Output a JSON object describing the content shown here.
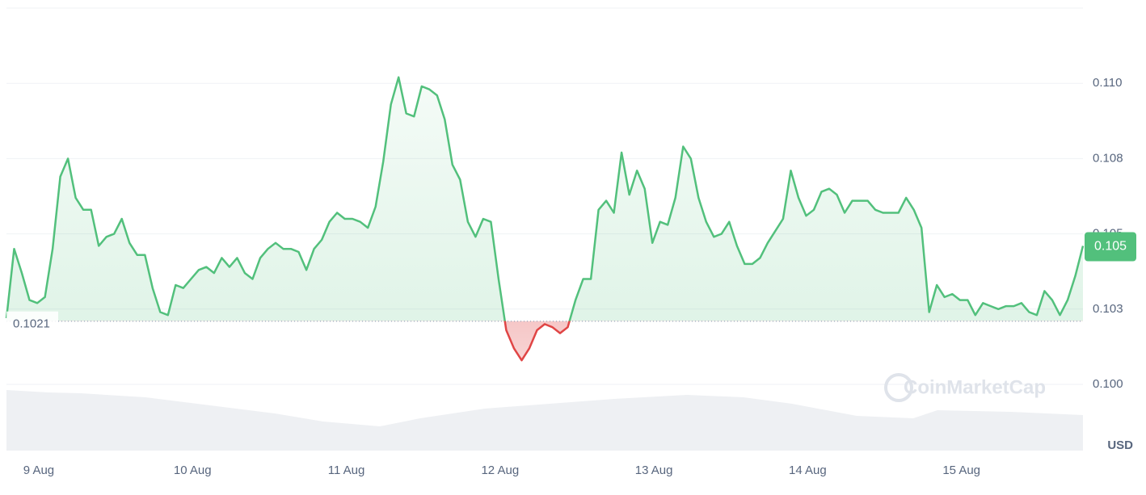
{
  "chart_data": {
    "type": "line",
    "series": [
      {
        "name": "Price",
        "up_color": "#52c07c",
        "down_color": "#e04545",
        "values": [
          0.1022,
          0.1045,
          0.1037,
          0.1028,
          0.1027,
          0.1029,
          0.1045,
          0.1069,
          0.1075,
          0.1062,
          0.1058,
          0.1058,
          0.1046,
          0.1049,
          0.105,
          0.1055,
          0.1047,
          0.1043,
          0.1043,
          0.1032,
          0.1024,
          0.1023,
          0.1033,
          0.1032,
          0.1035,
          0.1038,
          0.1039,
          0.1037,
          0.1042,
          0.1039,
          0.1042,
          0.1037,
          0.1035,
          0.1042,
          0.1045,
          0.1047,
          0.1045,
          0.1045,
          0.1044,
          0.1038,
          0.1045,
          0.1048,
          0.1054,
          0.1057,
          0.1055,
          0.1055,
          0.1054,
          0.1052,
          0.1059,
          0.1074,
          0.1093,
          0.1102,
          0.109,
          0.1089,
          0.1099,
          0.1098,
          0.1096,
          0.1088,
          0.1073,
          0.1068,
          0.1054,
          0.1049,
          0.1055,
          0.1054,
          0.1035,
          0.1018,
          0.1012,
          0.1008,
          0.1012,
          0.1018,
          0.102,
          0.1019,
          0.1017,
          0.1019,
          0.1028,
          0.1035,
          0.1035,
          0.1058,
          0.1061,
          0.1057,
          0.1077,
          0.1063,
          0.1071,
          0.1065,
          0.1047,
          0.1054,
          0.1053,
          0.1062,
          0.1079,
          0.1075,
          0.1062,
          0.1054,
          0.1049,
          0.105,
          0.1054,
          0.1046,
          0.104,
          0.104,
          0.1042,
          0.1047,
          0.1051,
          0.1055,
          0.1071,
          0.1062,
          0.1056,
          0.1058,
          0.1064,
          0.1065,
          0.1063,
          0.1057,
          0.1061,
          0.1061,
          0.1061,
          0.1058,
          0.1057,
          0.1057,
          0.1057,
          0.1062,
          0.1058,
          0.1052,
          0.1024,
          0.1033,
          0.1029,
          0.103,
          0.1028,
          0.1028,
          0.1023,
          0.1027,
          0.1026,
          0.1025,
          0.1026,
          0.1026,
          0.1027,
          0.1024,
          0.1023,
          0.1031,
          0.1028,
          0.1023,
          0.1028,
          0.1036,
          0.1046
        ]
      }
    ],
    "baseline": 0.1021,
    "last_label": "0.105",
    "xlim": [
      0,
      140
    ],
    "xticks": [
      {
        "value": 4.2,
        "label": "9 Aug"
      },
      {
        "value": 24.2,
        "label": "10 Aug"
      },
      {
        "value": 44.2,
        "label": "11 Aug"
      },
      {
        "value": 64.2,
        "label": "12 Aug"
      },
      {
        "value": 84.2,
        "label": "13 Aug"
      },
      {
        "value": 104.2,
        "label": "14 Aug"
      },
      {
        "value": 124.2,
        "label": "15 Aug"
      }
    ],
    "ylim": [
      0.0978,
      0.1125
    ],
    "yticks": [
      {
        "value": 0.1,
        "label": "0.100"
      },
      {
        "value": 0.1025,
        "label": "0.103"
      },
      {
        "value": 0.105,
        "label": "0.105"
      },
      {
        "value": 0.1075,
        "label": "0.108"
      },
      {
        "value": 0.11,
        "label": "0.110"
      }
    ],
    "grid": true,
    "currency": "USD",
    "watermark": "CoinMarketCap"
  }
}
